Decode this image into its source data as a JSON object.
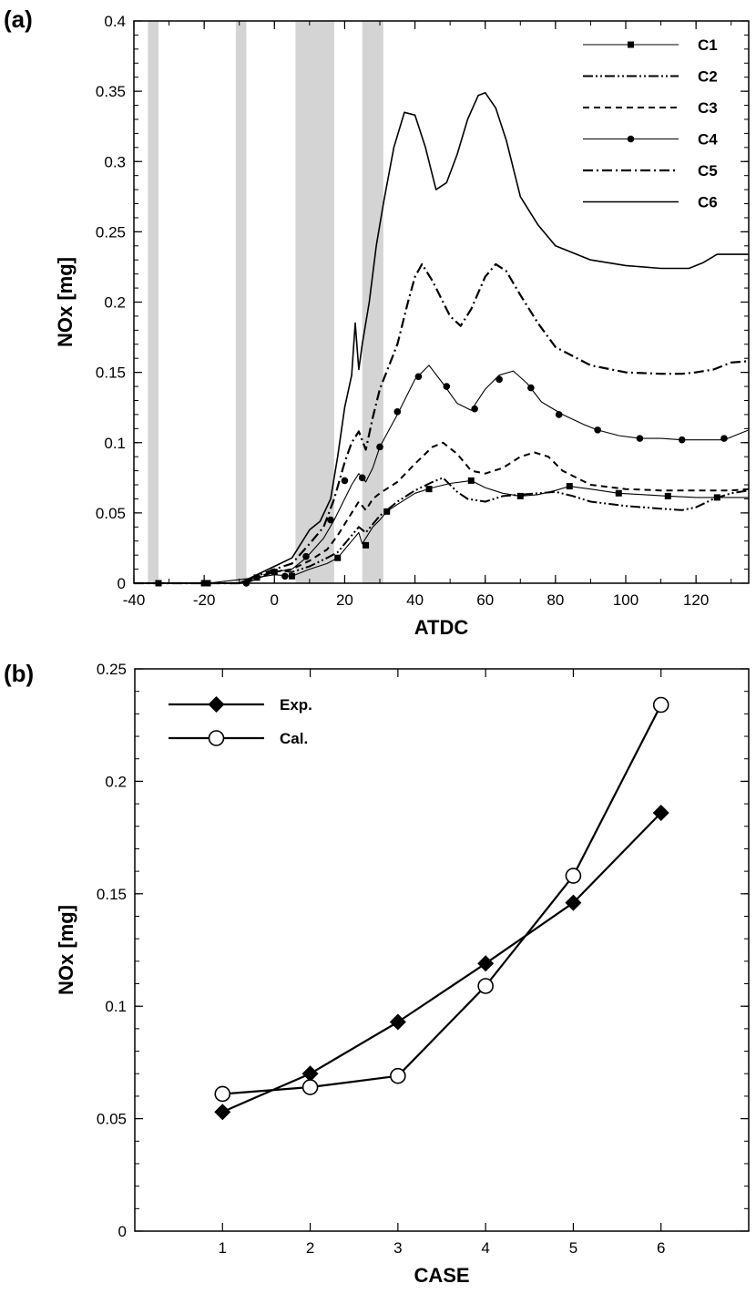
{
  "chart_data": [
    {
      "panel_label": "(a)",
      "type": "line",
      "xlabel": "ATDC",
      "ylabel": "NOx [mg]",
      "xlim": [
        -40,
        135
      ],
      "ylim": [
        0,
        0.4
      ],
      "x_ticks": [
        -40,
        -20,
        0,
        20,
        40,
        60,
        80,
        100,
        120
      ],
      "y_ticks": [
        0,
        0.05,
        0.1,
        0.15,
        0.2,
        0.25,
        0.3,
        0.35,
        0.4
      ],
      "x_tick_labels": [
        "-40",
        "-20",
        "0",
        "20",
        "40",
        "60",
        "80",
        "100",
        "120"
      ],
      "y_tick_labels": [
        "0",
        "0.05",
        "0.1",
        "0.15",
        "0.2",
        "0.25",
        "0.3",
        "0.35",
        "0.4"
      ],
      "shaded_regions": [
        [
          -36,
          -33
        ],
        [
          -11,
          -8
        ],
        [
          6,
          17
        ],
        [
          25,
          31
        ]
      ],
      "legend_position": "top-right",
      "grid": false,
      "series": [
        {
          "name": "C1",
          "style": "solid-thin",
          "marker": "square",
          "x": [
            -40,
            -33,
            -20,
            -19,
            -5,
            0,
            5,
            10,
            15,
            18,
            20,
            22,
            24,
            25,
            26,
            28,
            30,
            32,
            35,
            40,
            45,
            50,
            56,
            60,
            65,
            70,
            75,
            80,
            84,
            90,
            98,
            105,
            112,
            120,
            126,
            135
          ],
          "y": [
            0,
            0,
            0,
            0,
            0.004,
            0.006,
            0.005,
            0.01,
            0.014,
            0.018,
            0.024,
            0.03,
            0.036,
            0.028,
            0.032,
            0.04,
            0.045,
            0.051,
            0.056,
            0.064,
            0.068,
            0.071,
            0.073,
            0.068,
            0.064,
            0.062,
            0.063,
            0.066,
            0.069,
            0.067,
            0.064,
            0.063,
            0.062,
            0.061,
            0.061,
            0.061
          ],
          "marker_x": [
            -33,
            -20,
            -19,
            -5,
            0,
            5,
            18,
            26,
            32,
            44,
            56,
            70,
            84,
            98,
            112,
            126
          ],
          "marker_y": [
            0,
            0,
            0,
            0.004,
            0.008,
            0.005,
            0.018,
            0.027,
            0.051,
            0.067,
            0.073,
            0.062,
            0.069,
            0.064,
            0.062,
            0.061
          ]
        },
        {
          "name": "C2",
          "style": "dash-dot-dot",
          "x": [
            -40,
            -10,
            -5,
            -2,
            2,
            5,
            10,
            15,
            18,
            20,
            22,
            24,
            26,
            28,
            30,
            35,
            40,
            45,
            48,
            52,
            55,
            60,
            65,
            70,
            75,
            80,
            85,
            90,
            100,
            110,
            116,
            120,
            125,
            130,
            135
          ],
          "y": [
            0,
            0,
            0.003,
            0.007,
            0.009,
            0.008,
            0.012,
            0.018,
            0.022,
            0.028,
            0.034,
            0.04,
            0.036,
            0.042,
            0.048,
            0.058,
            0.066,
            0.072,
            0.075,
            0.065,
            0.06,
            0.058,
            0.062,
            0.063,
            0.064,
            0.065,
            0.062,
            0.058,
            0.055,
            0.053,
            0.052,
            0.054,
            0.06,
            0.064,
            0.066
          ]
        },
        {
          "name": "C3",
          "style": "dashed",
          "x": [
            -40,
            -10,
            -5,
            0,
            5,
            10,
            15,
            18,
            20,
            22,
            24,
            26,
            28,
            30,
            35,
            40,
            45,
            48,
            52,
            56,
            60,
            65,
            70,
            74,
            78,
            82,
            90,
            100,
            110,
            120,
            130,
            135
          ],
          "y": [
            0,
            0,
            0.004,
            0.008,
            0.01,
            0.016,
            0.024,
            0.034,
            0.042,
            0.05,
            0.058,
            0.052,
            0.06,
            0.064,
            0.072,
            0.085,
            0.097,
            0.1,
            0.092,
            0.08,
            0.078,
            0.082,
            0.09,
            0.093,
            0.09,
            0.08,
            0.07,
            0.067,
            0.066,
            0.066,
            0.066,
            0.067
          ]
        },
        {
          "name": "C4",
          "style": "solid-thin",
          "marker": "circle",
          "x": [
            -40,
            -8,
            -4,
            0,
            5,
            9,
            14,
            17,
            20,
            22,
            24,
            26,
            28,
            30,
            35,
            40,
            44,
            48,
            52,
            56,
            60,
            64,
            68,
            72,
            76,
            82,
            88,
            92,
            98,
            104,
            110,
            116,
            122,
            128,
            132,
            135
          ],
          "y": [
            0,
            0,
            0.004,
            0.008,
            0.01,
            0.018,
            0.032,
            0.045,
            0.06,
            0.07,
            0.078,
            0.072,
            0.082,
            0.097,
            0.12,
            0.145,
            0.155,
            0.142,
            0.128,
            0.123,
            0.138,
            0.148,
            0.151,
            0.142,
            0.129,
            0.12,
            0.113,
            0.109,
            0.105,
            0.103,
            0.103,
            0.102,
            0.102,
            0.102,
            0.106,
            0.109
          ],
          "marker_x": [
            -8,
            3,
            9,
            16,
            20,
            25,
            30,
            35,
            41,
            49,
            57,
            64,
            73,
            81,
            92,
            104,
            116,
            128
          ],
          "marker_y": [
            0,
            0.005,
            0.019,
            0.045,
            0.073,
            0.075,
            0.097,
            0.122,
            0.147,
            0.14,
            0.124,
            0.145,
            0.139,
            0.12,
            0.109,
            0.103,
            0.102,
            0.103
          ]
        },
        {
          "name": "C5",
          "style": "dash-dot",
          "x": [
            -40,
            -10,
            -5,
            0,
            5,
            10,
            14,
            17,
            20,
            22,
            24,
            26,
            28,
            30,
            35,
            38,
            40,
            42,
            45,
            50,
            53,
            56,
            60,
            63,
            66,
            70,
            75,
            80,
            90,
            100,
            110,
            116,
            120,
            125,
            130,
            135
          ],
          "y": [
            0,
            0,
            0.005,
            0.01,
            0.014,
            0.028,
            0.04,
            0.06,
            0.086,
            0.1,
            0.108,
            0.095,
            0.118,
            0.138,
            0.17,
            0.2,
            0.218,
            0.227,
            0.215,
            0.19,
            0.183,
            0.195,
            0.218,
            0.227,
            0.222,
            0.205,
            0.185,
            0.168,
            0.155,
            0.15,
            0.149,
            0.149,
            0.15,
            0.152,
            0.157,
            0.158
          ]
        },
        {
          "name": "C6",
          "style": "solid",
          "x": [
            -40,
            -10,
            -5,
            0,
            5,
            10,
            13,
            16,
            18,
            20,
            22,
            23,
            24,
            25,
            27,
            29,
            31,
            34,
            37,
            40,
            43,
            46,
            49,
            52,
            55,
            58,
            60,
            63,
            66,
            70,
            75,
            80,
            90,
            100,
            110,
            118,
            122,
            126,
            130,
            135
          ],
          "y": [
            0,
            0,
            0.006,
            0.012,
            0.018,
            0.038,
            0.044,
            0.06,
            0.09,
            0.125,
            0.148,
            0.185,
            0.152,
            0.17,
            0.2,
            0.24,
            0.27,
            0.31,
            0.335,
            0.333,
            0.31,
            0.28,
            0.285,
            0.305,
            0.33,
            0.347,
            0.349,
            0.338,
            0.315,
            0.275,
            0.255,
            0.24,
            0.23,
            0.226,
            0.224,
            0.224,
            0.228,
            0.234,
            0.234,
            0.234
          ]
        }
      ]
    },
    {
      "panel_label": "(b)",
      "type": "line",
      "xlabel": "CASE",
      "ylabel": "NOx [mg]",
      "xlim": [
        0,
        7
      ],
      "ylim": [
        0,
        0.25
      ],
      "x_ticks": [
        1,
        2,
        3,
        4,
        5,
        6
      ],
      "y_ticks": [
        0,
        0.05,
        0.1,
        0.15,
        0.2,
        0.25
      ],
      "x_tick_labels": [
        "1",
        "2",
        "3",
        "4",
        "5",
        "6"
      ],
      "y_tick_labels": [
        "0",
        "0.05",
        "0.1",
        "0.15",
        "0.2",
        "0.25"
      ],
      "legend_position": "top-left",
      "grid": false,
      "series": [
        {
          "name": "Exp.",
          "style": "solid-thick",
          "marker": "diamond-filled",
          "x": [
            1,
            2,
            3,
            4,
            5,
            6
          ],
          "y": [
            0.053,
            0.07,
            0.093,
            0.119,
            0.146,
            0.186
          ]
        },
        {
          "name": "Cal.",
          "style": "solid-thick",
          "marker": "circle-open",
          "x": [
            1,
            2,
            3,
            4,
            5,
            6
          ],
          "y": [
            0.061,
            0.064,
            0.069,
            0.109,
            0.158,
            0.234
          ]
        }
      ]
    }
  ]
}
